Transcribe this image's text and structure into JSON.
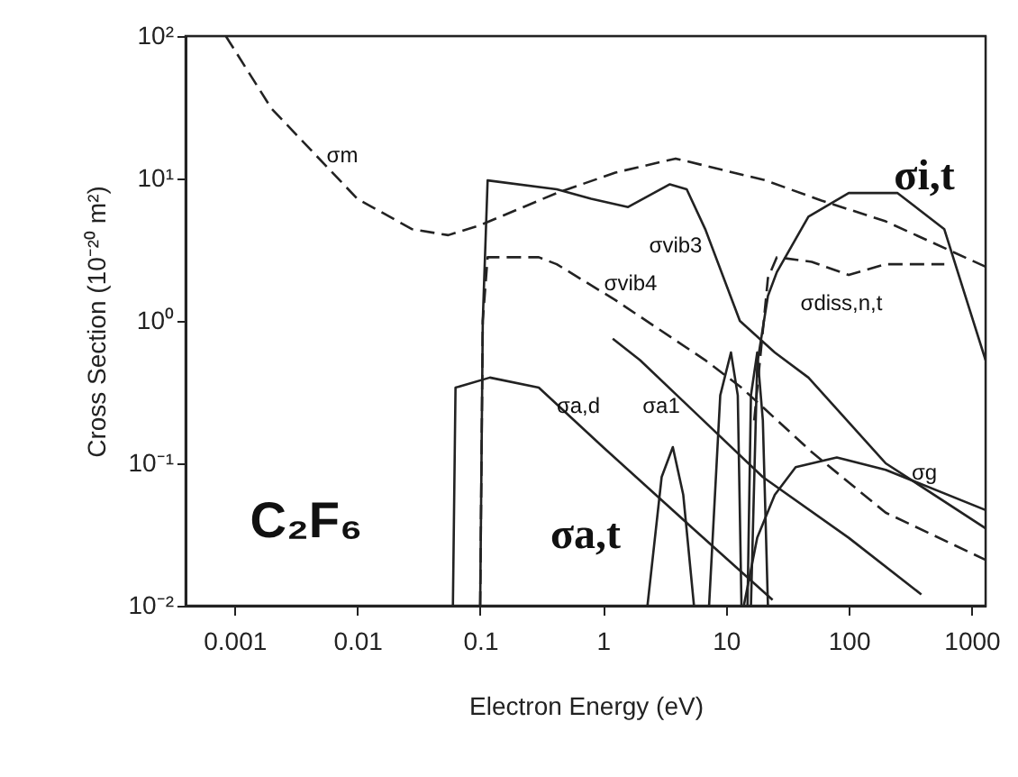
{
  "chart_data": {
    "type": "line",
    "xlabel": "Electron Energy (eV)",
    "ylabel": "Cross Section (10⁻²⁰ m²)",
    "log": "xy",
    "grid": false,
    "marker": "none",
    "xlim": [
      0.0004,
      1300
    ],
    "ylim": [
      0.01,
      100
    ],
    "xticks": [
      0.001,
      0.01,
      0.1,
      1,
      10,
      100,
      1000
    ],
    "yticks": [
      {
        "value": 0.01,
        "label": "10⁻²"
      },
      {
        "value": 0.1,
        "label": "10⁻¹"
      },
      {
        "value": 1,
        "label": "10⁰"
      },
      {
        "value": 10,
        "label": "10¹"
      },
      {
        "value": 100,
        "label": "10²"
      }
    ],
    "series": [
      {
        "color": "#222222",
        "line_style": "dashed",
        "x": [
          0.00085,
          0.002,
          0.01,
          0.028,
          0.055,
          0.1,
          0.42,
          1.26,
          3.9,
          21,
          60,
          200,
          1300
        ],
        "values": [
          100,
          31,
          7.2,
          4.4,
          4.0,
          4.7,
          7.9,
          11,
          13.8,
          9.7,
          7.0,
          5.0,
          2.4
        ]
      },
      {
        "color": "#222222",
        "line_style": "solid",
        "x": [
          0.1,
          0.105,
          0.115,
          0.42,
          0.8,
          1.6,
          3.5,
          4.8,
          6.8,
          13,
          25,
          47,
          200,
          1300
        ],
        "values": [
          0.01,
          1.0,
          9.7,
          8.4,
          7.2,
          6.3,
          9.1,
          8.4,
          4.4,
          1.0,
          0.6,
          0.4,
          0.1,
          0.035
        ]
      },
      {
        "color": "#222222",
        "line_style": "dashed",
        "x": [
          0.1,
          0.105,
          0.115,
          0.3,
          0.42,
          1.26,
          6.8,
          13.4,
          50,
          200,
          1300
        ],
        "values": [
          0.01,
          1.0,
          2.8,
          2.8,
          2.5,
          1.4,
          0.53,
          0.34,
          0.12,
          0.045,
          0.021
        ]
      },
      {
        "color": "#222222",
        "line_style": "solid",
        "x": [
          0.06,
          0.063,
          0.12,
          0.3,
          1,
          5,
          24
        ],
        "values": [
          0.01,
          0.34,
          0.4,
          0.34,
          0.13,
          0.037,
          0.011
        ]
      },
      {
        "color": "#222222",
        "line_style": "solid",
        "x": [
          1.2,
          2,
          5,
          20,
          100,
          390
        ],
        "values": [
          0.75,
          0.53,
          0.25,
          0.08,
          0.03,
          0.012
        ]
      },
      {
        "color": "#222222",
        "line_style": "solid",
        "x": [
          16,
          18,
          22,
          26,
          47,
          100,
          250,
          600,
          1300
        ],
        "values": [
          0.01,
          0.5,
          1.5,
          2.2,
          5.4,
          7.9,
          7.9,
          4.4,
          0.53
        ]
      },
      {
        "color": "#222222",
        "line_style": "dashed",
        "x": [
          17,
          22,
          26,
          50,
          100,
          200,
          600
        ],
        "values": [
          0.2,
          2.0,
          2.8,
          2.6,
          2.1,
          2.5,
          2.5
        ]
      },
      {
        "color": "#222222",
        "line_style": "solid",
        "x": [
          14,
          18,
          25,
          37,
          80,
          200,
          1300
        ],
        "values": [
          0.01,
          0.03,
          0.06,
          0.094,
          0.11,
          0.09,
          0.047
        ]
      },
      {
        "color": "#222222",
        "line_style": "solid",
        "x": [
          2.3,
          3,
          3.7,
          4.5,
          5.5
        ],
        "values": [
          0.01,
          0.08,
          0.13,
          0.06,
          0.01
        ]
      },
      {
        "color": "#222222",
        "line_style": "solid",
        "x": [
          7.3,
          9,
          11,
          12.5,
          13.4
        ],
        "values": [
          0.01,
          0.3,
          0.6,
          0.3,
          0.01
        ]
      },
      {
        "color": "#222222",
        "line_style": "solid",
        "x": [
          15,
          16,
          18,
          20,
          22
        ],
        "values": [
          0.01,
          0.3,
          0.6,
          0.2,
          0.01
        ]
      }
    ],
    "annotations": [
      "σm",
      "σvib3",
      "σvib4",
      "σdiss,n,t",
      "σi,t",
      "σa,d",
      "σa1",
      "σg",
      "σa,t",
      "C₂F₆"
    ]
  }
}
